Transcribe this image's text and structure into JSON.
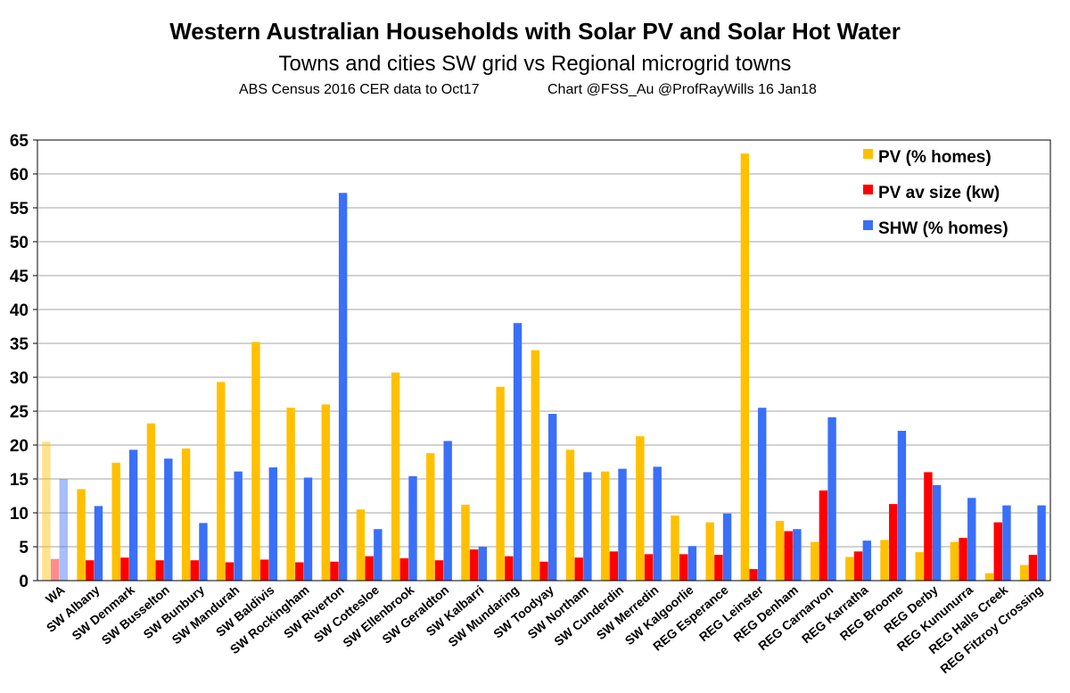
{
  "chart_data": {
    "type": "bar",
    "title": "Western Australian Households with Solar PV and Solar Hot Water",
    "subtitle": "Towns and cities SW grid vs Regional microgrid towns",
    "source_left": "ABS Census 2016  CER data to Oct17",
    "source_right": "Chart @FSS_Au  @ProfRayWills 16 Jan18",
    "xlabel": "",
    "ylabel": "",
    "ylim": [
      0,
      65
    ],
    "yticks": [
      0,
      5,
      10,
      15,
      20,
      25,
      30,
      35,
      40,
      45,
      50,
      55,
      60,
      65
    ],
    "grid": true,
    "legend_position": "top-right",
    "categories": [
      "WA",
      "SW Albany",
      "SW Denmark",
      "SW Busselton",
      "SW Bunbury",
      "SW Mandurah",
      "SW Baldivis",
      "SW Rockingham",
      "SW Riverton",
      "SW Cottesloe",
      "SW Ellenbrook",
      "SW Geraldton",
      "SW Kalbarri",
      "SW Mundaring",
      "SW Toodyay",
      "SW Northam",
      "SW Cunderdin",
      "SW Merredin",
      "SW Kalgoorlie",
      "REG Esperance",
      "REG Leinster",
      "REG Denham",
      "REG Carnarvon",
      "REG Karratha",
      "REG Broome",
      "REG Derby",
      "REG Kununurra",
      "REG Halls Creek",
      "REG Fitzroy Crossing"
    ],
    "series": [
      {
        "name": "PV (% homes)",
        "color": "#FFC000",
        "values": [
          20.5,
          13.5,
          17.4,
          23.2,
          19.5,
          29.3,
          35.2,
          25.5,
          26.0,
          10.5,
          30.7,
          18.8,
          11.2,
          28.6,
          34.0,
          19.3,
          16.1,
          21.3,
          9.6,
          8.6,
          63.0,
          8.8,
          5.7,
          3.5,
          6.0,
          4.2,
          5.7,
          1.1,
          2.3
        ]
      },
      {
        "name": "PV av size (kw)",
        "color": "#FF0000",
        "values": [
          3.2,
          3.0,
          3.4,
          3.0,
          3.0,
          2.7,
          3.1,
          2.7,
          2.8,
          3.6,
          3.3,
          3.0,
          4.6,
          3.6,
          2.8,
          3.4,
          4.3,
          3.9,
          3.9,
          3.8,
          1.7,
          7.3,
          13.3,
          4.3,
          11.3,
          16.0,
          6.3,
          8.6,
          3.8
        ]
      },
      {
        "name": "SHW (% homes)",
        "color": "#3A6FF7",
        "values": [
          15.0,
          11.0,
          19.3,
          18.0,
          8.5,
          16.1,
          16.7,
          15.2,
          57.2,
          7.6,
          15.4,
          20.6,
          5.0,
          38.0,
          24.6,
          16.0,
          16.5,
          16.8,
          5.1,
          9.9,
          25.5,
          7.6,
          24.1,
          5.9,
          22.1,
          14.1,
          12.2,
          11.1,
          11.1
        ]
      }
    ]
  }
}
